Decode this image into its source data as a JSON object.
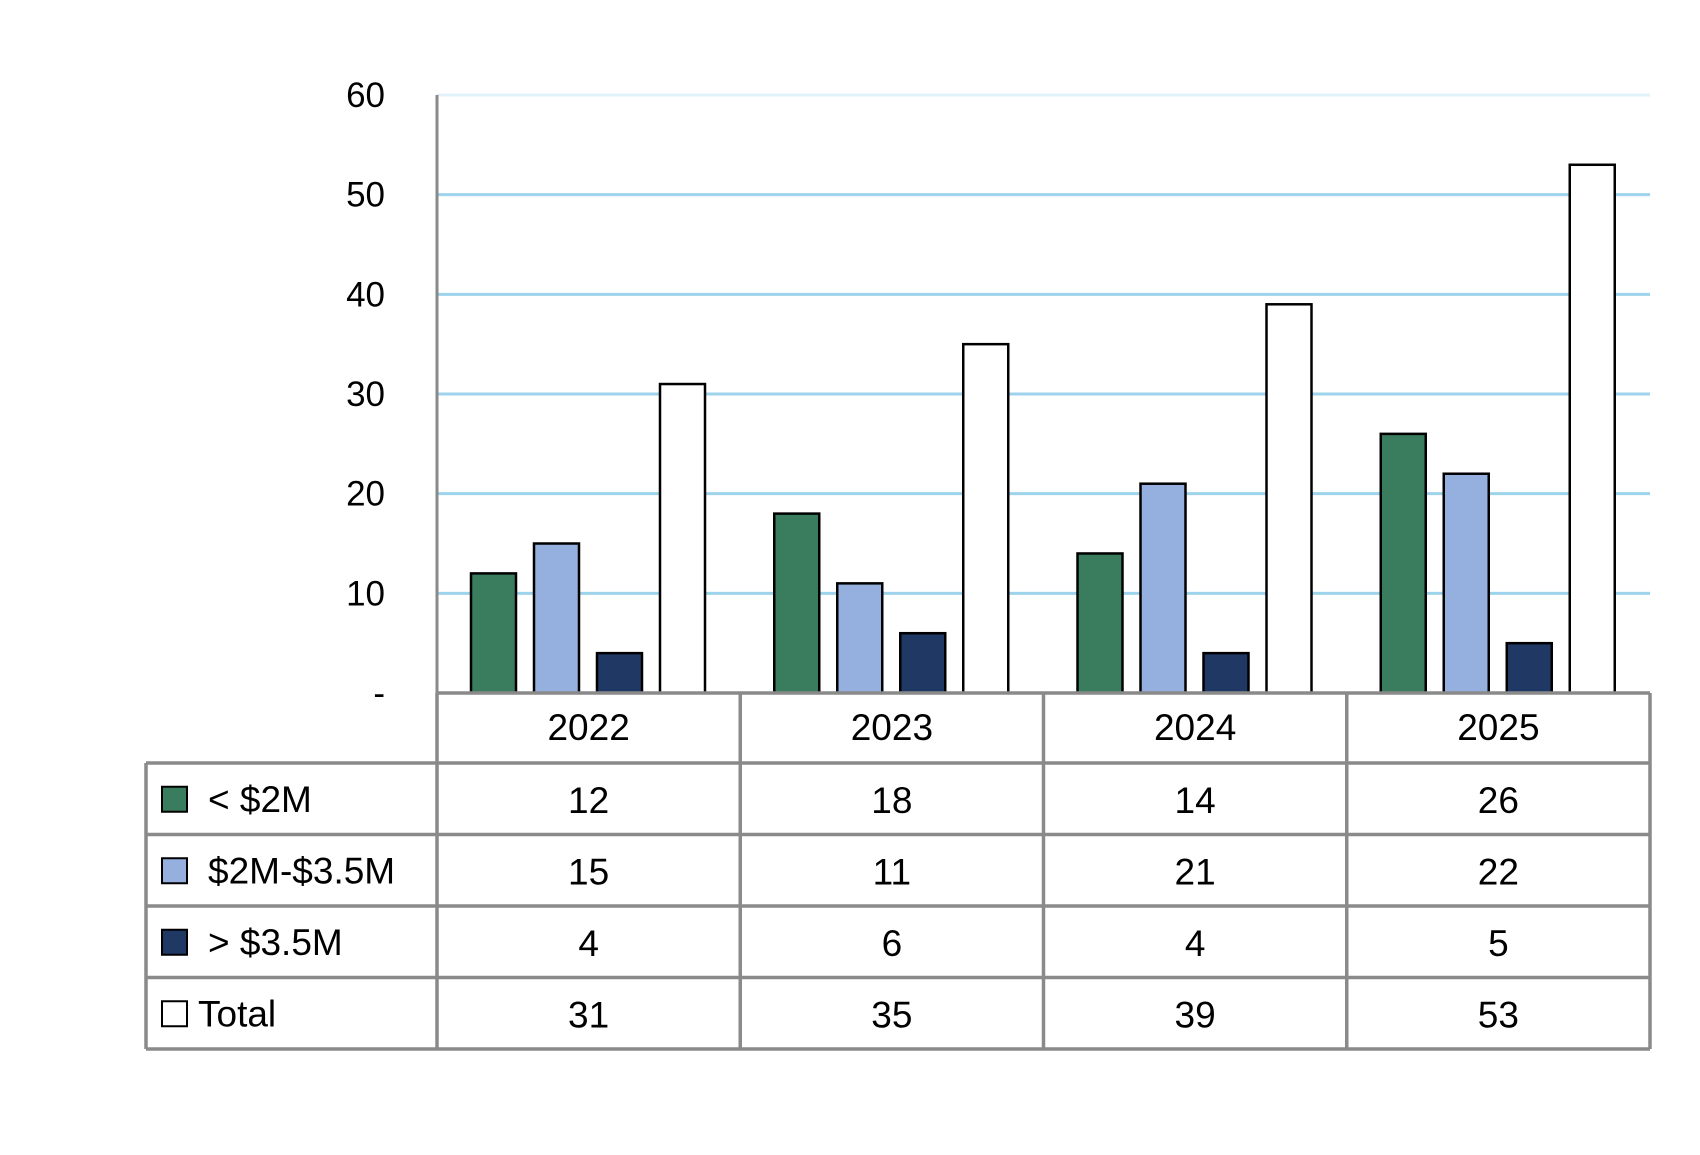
{
  "chart_data": {
    "type": "bar",
    "categories": [
      "2022",
      "2023",
      "2024",
      "2025"
    ],
    "series": [
      {
        "name": "< $2M",
        "values": [
          12,
          18,
          14,
          26
        ],
        "color": "#3a7d5e"
      },
      {
        "name": "$2M-$3.5M",
        "values": [
          15,
          11,
          21,
          22
        ],
        "color": "#95b0de"
      },
      {
        "name": "> $3.5M",
        "values": [
          4,
          6,
          4,
          5
        ],
        "color": "#1f3864"
      },
      {
        "name": "Total",
        "values": [
          31,
          35,
          39,
          53
        ],
        "color": "#ffffff"
      }
    ],
    "y_ticks": [
      "-",
      "10",
      "20",
      "30",
      "40",
      "50",
      "60"
    ],
    "ylim": [
      0,
      60
    ],
    "grid": true,
    "legend": "data-table-rows",
    "gridline_color": "#8ccbe8",
    "table_border_color": "#8a8a8a"
  }
}
